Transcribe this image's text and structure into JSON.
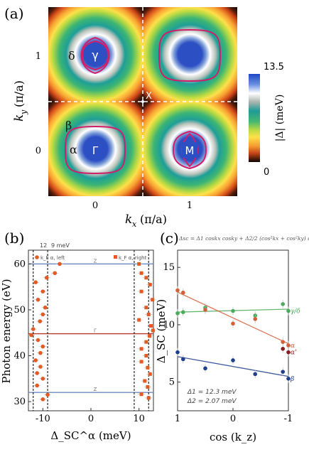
{
  "panel_a": {
    "label": "(a)",
    "xlabel_k": "k",
    "xlabel_sub": "x",
    "xlabel_unit": "(π/a)",
    "ylabel_k": "k",
    "ylabel_sub": "y",
    "ylabel_unit": "(π/a)",
    "xticks": [
      "0",
      "1"
    ],
    "yticks": [
      "1",
      "0"
    ],
    "points": {
      "gamma_top": "γ",
      "gamma": "Γ",
      "M_center": "M",
      "X": "X"
    },
    "band_labels": {
      "delta": "δ",
      "beta": "β",
      "alpha": "α"
    },
    "colorbar": {
      "max": "13.5",
      "min": "0",
      "label": "|Δ| (meV)"
    }
  },
  "chart_data": [
    {
      "type": "scatter",
      "panel": "(b)",
      "xlabel": "Δ_SC^α (meV)",
      "ylabel": "Photon energy (eV)",
      "xlim": [
        -13,
        13
      ],
      "ylim": [
        28,
        63
      ],
      "xticks": [
        "-10",
        "0",
        "10"
      ],
      "yticks": [
        "30",
        "40",
        "50",
        "60"
      ],
      "top_annotations": [
        "12",
        "9 meV"
      ],
      "legend": [
        {
          "name": "k_F α, left",
          "marker": "circle"
        },
        {
          "name": "k_F α, right",
          "marker": "square"
        }
      ],
      "hlines": [
        {
          "y": 60,
          "label": "Z"
        },
        {
          "y": 44.8,
          "label": "Γ"
        },
        {
          "y": 32,
          "label": "Z"
        }
      ],
      "vlines": [
        -12,
        -9,
        9,
        12
      ],
      "series": [
        {
          "name": "k_F α, left",
          "points": [
            [
              -6.5,
              60
            ],
            [
              -7.5,
              58
            ],
            [
              -9.2,
              57
            ],
            [
              -11.5,
              56
            ],
            [
              -10,
              54
            ],
            [
              -11,
              52.2
            ],
            [
              -9.5,
              50.5
            ],
            [
              -10,
              49
            ],
            [
              -10.6,
              47.5
            ],
            [
              -12,
              45.8
            ],
            [
              -12.4,
              44.5
            ],
            [
              -11,
              43.4
            ],
            [
              -10,
              42
            ],
            [
              -10.5,
              40.6
            ],
            [
              -11.5,
              39
            ],
            [
              -10.5,
              37.6
            ],
            [
              -11.2,
              36.2
            ],
            [
              -10,
              35
            ],
            [
              -11.2,
              33.5
            ],
            [
              -9,
              31.5
            ],
            [
              -10,
              30.5
            ]
          ]
        },
        {
          "name": "k_F α, right",
          "points": [
            [
              10,
              60
            ],
            [
              10.5,
              58
            ],
            [
              11.5,
              57
            ],
            [
              12.3,
              55.5
            ],
            [
              10.5,
              54
            ],
            [
              12.8,
              52.2
            ],
            [
              11.5,
              50.5
            ],
            [
              12,
              49
            ],
            [
              10,
              47.8
            ],
            [
              12.5,
              46.5
            ],
            [
              12.9,
              45.5
            ],
            [
              12.2,
              44.3
            ],
            [
              11.5,
              43
            ],
            [
              10.5,
              41.5
            ],
            [
              11.5,
              40
            ],
            [
              10.5,
              38.7
            ],
            [
              11.8,
              37.4
            ],
            [
              12.3,
              36
            ],
            [
              11.2,
              34.5
            ],
            [
              11.8,
              33.2
            ],
            [
              10.5,
              31.6
            ],
            [
              12,
              30.8
            ]
          ]
        }
      ]
    },
    {
      "type": "scatter",
      "panel": "(c)",
      "xlabel": "cos (k_z)",
      "ylabel": "Δ_SC (meV)",
      "xlim": [
        1,
        -1
      ],
      "ylim": [
        2.5,
        16.5
      ],
      "xticks": [
        "1",
        "0",
        "-1"
      ],
      "yticks": [
        "5",
        "10",
        "15"
      ],
      "formula": "Δsc = Δ1 coskx cosky + Δ2/2 (cos²kx + cos²ky) coskz",
      "params": [
        "Δ1 = 12.3 meV",
        "Δ2 = 2.07 meV"
      ],
      "series": [
        {
          "name": "γ/δ",
          "color": "#4caa5c",
          "values": [
            [
              1,
              11
            ],
            [
              0.9,
              11.1
            ],
            [
              0.5,
              11.5
            ],
            [
              0,
              11.2
            ],
            [
              -0.4,
              10.8
            ],
            [
              -0.9,
              11.8
            ],
            [
              -1,
              11.2
            ]
          ]
        },
        {
          "name": "α",
          "color": "#d4603a",
          "values": [
            [
              1,
              13
            ],
            [
              0.9,
              12.8
            ],
            [
              0.5,
              11.3
            ],
            [
              0,
              10.1
            ],
            [
              -0.4,
              10.5
            ],
            [
              -0.9,
              8.5
            ],
            [
              -1,
              8.2
            ]
          ]
        },
        {
          "name": "α'",
          "color": "#8a1c1c",
          "values": [
            [
              -0.9,
              7.9
            ],
            [
              -1,
              7.6
            ]
          ]
        },
        {
          "name": "β",
          "color": "#1f3e8c",
          "values": [
            [
              1,
              7.6
            ],
            [
              0.9,
              7
            ],
            [
              0.5,
              6.2
            ],
            [
              0,
              6.9
            ],
            [
              -0.4,
              5.7
            ],
            [
              -0.9,
              5.9
            ],
            [
              -1,
              5.3
            ]
          ]
        }
      ]
    }
  ]
}
